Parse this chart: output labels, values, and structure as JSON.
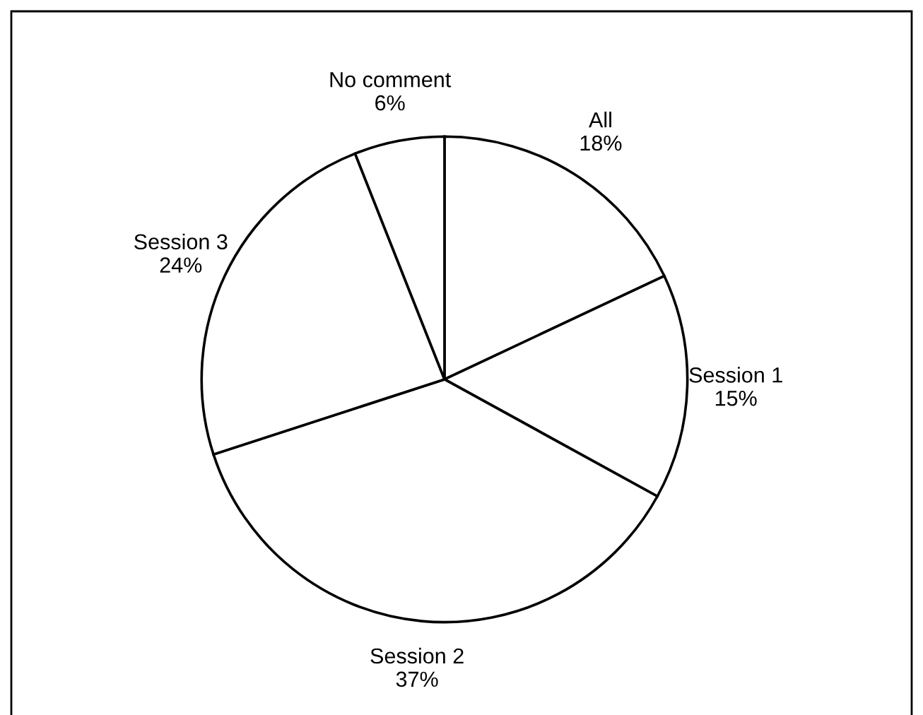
{
  "chart_data": {
    "type": "pie",
    "categories": [
      "All",
      "Session 1",
      "Session 2",
      "Session 3",
      "No comment"
    ],
    "values": [
      18,
      15,
      37,
      24,
      6
    ],
    "colors": [
      "#ffffff",
      "#ffffff",
      "#ffffff",
      "#ffffff",
      "#ffffff"
    ],
    "value_labels": [
      "18%",
      "15%",
      "37%",
      "24%",
      "6%"
    ],
    "legend": false
  }
}
